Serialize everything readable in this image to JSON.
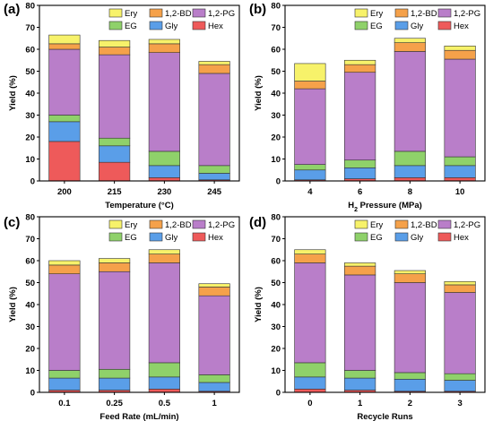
{
  "figure": {
    "panels": [
      {
        "tag": "(a)"
      },
      {
        "tag": "(b)"
      },
      {
        "tag": "(c)"
      },
      {
        "tag": "(d)"
      }
    ]
  },
  "colors": {
    "Hex": "#ee5a5a",
    "Gly": "#5a9ee8",
    "EG": "#8fd16a",
    "1,2-PG": "#b97ec9",
    "1,2-BD": "#f5a14a",
    "Ery": "#f7f26a"
  },
  "chart_data": [
    {
      "type": "bar",
      "stacked": true,
      "xlabel": "Temperature (°C)",
      "ylabel": "Yield (%)",
      "ylim": [
        0,
        80
      ],
      "yticks": [
        0,
        10,
        20,
        30,
        40,
        50,
        60,
        70,
        80
      ],
      "categories": [
        "200",
        "215",
        "230",
        "245"
      ],
      "legend": {
        "placement": "top-right",
        "entries": [
          "Ery",
          "1,2-BD",
          "1,2-PG",
          "EG",
          "Gly",
          "Hex"
        ]
      },
      "series": [
        {
          "name": "Hex",
          "values": [
            18,
            8.5,
            1.5,
            0.5
          ]
        },
        {
          "name": "Gly",
          "values": [
            9,
            7.5,
            5.5,
            3
          ]
        },
        {
          "name": "EG",
          "values": [
            3,
            3.5,
            6.5,
            3.5
          ]
        },
        {
          "name": "1,2-PG",
          "values": [
            30,
            38,
            45,
            42
          ]
        },
        {
          "name": "1,2-BD",
          "values": [
            2.5,
            3.5,
            4,
            4
          ]
        },
        {
          "name": "Ery",
          "values": [
            4,
            3,
            2,
            1.5
          ]
        }
      ]
    },
    {
      "type": "bar",
      "stacked": true,
      "xlabel": "H₂ Pressure (MPa)",
      "ylabel": "Yield (%)",
      "ylim": [
        0,
        80
      ],
      "yticks": [
        0,
        10,
        20,
        30,
        40,
        50,
        60,
        70,
        80
      ],
      "categories": [
        "4",
        "6",
        "8",
        "10"
      ],
      "legend": {
        "placement": "top-right",
        "entries": [
          "Ery",
          "1,2-BD",
          "1,2-PG",
          "EG",
          "Gly",
          "Hex"
        ]
      },
      "series": [
        {
          "name": "Hex",
          "values": [
            0.5,
            1,
            1.5,
            1.5
          ]
        },
        {
          "name": "Gly",
          "values": [
            4.5,
            5,
            5.5,
            5.5
          ]
        },
        {
          "name": "EG",
          "values": [
            2.5,
            3.5,
            6.5,
            4
          ]
        },
        {
          "name": "1,2-PG",
          "values": [
            34.5,
            40,
            45.5,
            44.5
          ]
        },
        {
          "name": "1,2-BD",
          "values": [
            3.5,
            3.5,
            4,
            4
          ]
        },
        {
          "name": "Ery",
          "values": [
            8,
            2,
            2,
            2
          ]
        }
      ]
    },
    {
      "type": "bar",
      "stacked": true,
      "xlabel": "Feed Rate (mL/min)",
      "ylabel": "Yield (%)",
      "ylim": [
        0,
        80
      ],
      "yticks": [
        0,
        10,
        20,
        30,
        40,
        50,
        60,
        70,
        80
      ],
      "categories": [
        "0.1",
        "0.25",
        "0.5",
        "1"
      ],
      "legend": {
        "placement": "top-right",
        "entries": [
          "Ery",
          "1,2-BD",
          "1,2-PG",
          "EG",
          "Gly",
          "Hex"
        ]
      },
      "series": [
        {
          "name": "Hex",
          "values": [
            1,
            1,
            1.5,
            0.5
          ]
        },
        {
          "name": "Gly",
          "values": [
            5.5,
            5.5,
            5.5,
            4
          ]
        },
        {
          "name": "EG",
          "values": [
            3.5,
            4,
            6.5,
            3.5
          ]
        },
        {
          "name": "1,2-PG",
          "values": [
            44,
            44.5,
            45.5,
            36
          ]
        },
        {
          "name": "1,2-BD",
          "values": [
            4,
            4,
            4,
            4
          ]
        },
        {
          "name": "Ery",
          "values": [
            2,
            2,
            2,
            1.5
          ]
        }
      ]
    },
    {
      "type": "bar",
      "stacked": true,
      "xlabel": "Recycle Runs",
      "ylabel": "Yield (%)",
      "ylim": [
        0,
        80
      ],
      "yticks": [
        0,
        10,
        20,
        30,
        40,
        50,
        60,
        70,
        80
      ],
      "categories": [
        "0",
        "1",
        "2",
        "3"
      ],
      "legend": {
        "placement": "top-right",
        "entries": [
          "Ery",
          "1,2-BD",
          "1,2-PG",
          "EG",
          "Gly",
          "Hex"
        ]
      },
      "series": [
        {
          "name": "Hex",
          "values": [
            1.5,
            1,
            0.5,
            0.5
          ]
        },
        {
          "name": "Gly",
          "values": [
            5.5,
            5.5,
            5.5,
            5
          ]
        },
        {
          "name": "EG",
          "values": [
            6.5,
            3.5,
            3,
            3
          ]
        },
        {
          "name": "1,2-PG",
          "values": [
            45.5,
            43.5,
            41,
            37
          ]
        },
        {
          "name": "1,2-BD",
          "values": [
            4,
            4,
            4,
            3.5
          ]
        },
        {
          "name": "Ery",
          "values": [
            2,
            1.5,
            1.5,
            1.5
          ]
        }
      ]
    }
  ]
}
